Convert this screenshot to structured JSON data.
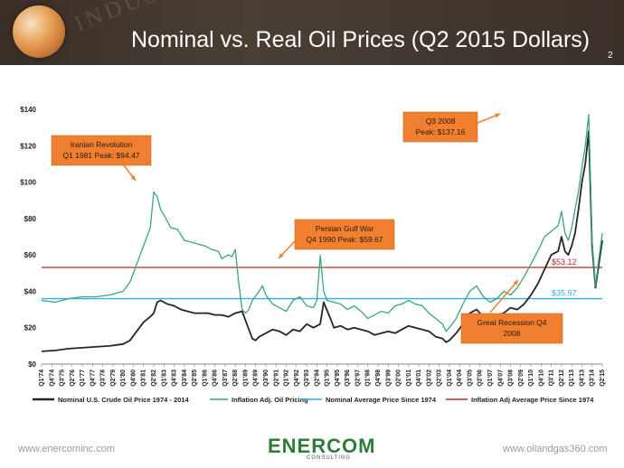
{
  "header": {
    "title": "Nominal vs. Real Oil Prices (Q2 2015 Dollars)",
    "page_number": "2",
    "watermark_text": "INDUSTRY"
  },
  "footer": {
    "left_url": "www.enercominc.com",
    "right_url": "www.oilandgas360.com",
    "logo_text": "ENERCOM",
    "logo_registered": "®",
    "logo_subtext": "CONSULTING"
  },
  "colors": {
    "header_bg": "#3e342c",
    "nominal": "#262626",
    "inflation_adj": "#3aa57f",
    "nominal_avg": "#2ab2e0",
    "inflation_avg": "#c0262b",
    "callout_bg": "#f07f2f",
    "callout_arrow": "#f07f2f"
  },
  "chart_data": {
    "type": "line",
    "ylim": [
      0,
      140
    ],
    "yticks": [
      "$0",
      "$20",
      "$40",
      "$60",
      "$80",
      "$100",
      "$120",
      "$140"
    ],
    "ytick_values": [
      0,
      20,
      40,
      60,
      80,
      100,
      120,
      140
    ],
    "x_start_index": 0,
    "x_count": 166,
    "x_tick_labels": [
      "Q1'74",
      "Q4'74",
      "Q3'75",
      "Q2'76",
      "Q1'77",
      "Q4'77",
      "Q3'78",
      "Q2'79",
      "Q1'80",
      "Q4'80",
      "Q3'81",
      "Q2'82",
      "Q1'83",
      "Q4'83",
      "Q3'84",
      "Q2'85",
      "Q1'86",
      "Q4'86",
      "Q3'87",
      "Q2'88",
      "Q1'89",
      "Q4'89",
      "Q3'90",
      "Q2'91",
      "Q1'92",
      "Q4'92",
      "Q3'93",
      "Q2'94",
      "Q1'95",
      "Q4'95",
      "Q3'96",
      "Q2'97",
      "Q1'98",
      "Q4'98",
      "Q3'99",
      "Q2'00",
      "Q1'01",
      "Q4'01",
      "Q3'02",
      "Q2'03",
      "Q1'04",
      "Q4'04",
      "Q3'05",
      "Q2'06",
      "Q1'07",
      "Q4'07",
      "Q3'08",
      "Q2'09",
      "Q1'10",
      "Q4'10",
      "Q3'11",
      "Q2'12",
      "Q1'13",
      "Q4'13",
      "Q3'14",
      "Q2'15"
    ],
    "series": [
      {
        "name": "Nominal U.S. Crude Oil Price 1974 - 2014",
        "key": "nominal",
        "points": [
          [
            0,
            7
          ],
          [
            4,
            7.5
          ],
          [
            8,
            8.5
          ],
          [
            12,
            9
          ],
          [
            16,
            9.5
          ],
          [
            20,
            10
          ],
          [
            24,
            11
          ],
          [
            26,
            13
          ],
          [
            28,
            18
          ],
          [
            30,
            23
          ],
          [
            32,
            26
          ],
          [
            33,
            28
          ],
          [
            34,
            34
          ],
          [
            35,
            35
          ],
          [
            37,
            33
          ],
          [
            39,
            32
          ],
          [
            41,
            30
          ],
          [
            43,
            29
          ],
          [
            45,
            28
          ],
          [
            47,
            28
          ],
          [
            49,
            28
          ],
          [
            51,
            27
          ],
          [
            53,
            27
          ],
          [
            55,
            26
          ],
          [
            57,
            28
          ],
          [
            59,
            29
          ],
          [
            60,
            24
          ],
          [
            62,
            14
          ],
          [
            63,
            13
          ],
          [
            64,
            15
          ],
          [
            66,
            17
          ],
          [
            68,
            19
          ],
          [
            70,
            18
          ],
          [
            72,
            16
          ],
          [
            74,
            19
          ],
          [
            76,
            18
          ],
          [
            78,
            22
          ],
          [
            80,
            20
          ],
          [
            82,
            22
          ],
          [
            83,
            34
          ],
          [
            85,
            25
          ],
          [
            86,
            20
          ],
          [
            88,
            21
          ],
          [
            90,
            19
          ],
          [
            92,
            20
          ],
          [
            94,
            19
          ],
          [
            96,
            18
          ],
          [
            98,
            16
          ],
          [
            100,
            17
          ],
          [
            102,
            18
          ],
          [
            104,
            17
          ],
          [
            106,
            19
          ],
          [
            108,
            21
          ],
          [
            110,
            20
          ],
          [
            112,
            19
          ],
          [
            114,
            18
          ],
          [
            116,
            15
          ],
          [
            118,
            14
          ],
          [
            119,
            12
          ],
          [
            120,
            13
          ],
          [
            122,
            17
          ],
          [
            124,
            22
          ],
          [
            126,
            28
          ],
          [
            128,
            30
          ],
          [
            130,
            26
          ],
          [
            132,
            25
          ],
          [
            134,
            27
          ],
          [
            136,
            28
          ],
          [
            138,
            31
          ],
          [
            140,
            30
          ],
          [
            142,
            33
          ],
          [
            144,
            38
          ],
          [
            146,
            44
          ],
          [
            148,
            52
          ],
          [
            150,
            60
          ],
          [
            152,
            62
          ],
          [
            153,
            70
          ],
          [
            154,
            62
          ],
          [
            155,
            60
          ],
          [
            156,
            65
          ],
          [
            157,
            72
          ],
          [
            158,
            85
          ],
          [
            159,
            100
          ],
          [
            160,
            110
          ],
          [
            161,
            128
          ],
          [
            162,
            65
          ],
          [
            163,
            42
          ],
          [
            164,
            55
          ],
          [
            165,
            68
          ]
        ]
      },
      {
        "name": "Inflation Adj. Oil Pricing",
        "key": "inflation",
        "points": [
          [
            0,
            35
          ],
          [
            4,
            34
          ],
          [
            8,
            36
          ],
          [
            12,
            37
          ],
          [
            16,
            37
          ],
          [
            20,
            38
          ],
          [
            24,
            40
          ],
          [
            26,
            45
          ],
          [
            28,
            55
          ],
          [
            30,
            65
          ],
          [
            31,
            70
          ],
          [
            32,
            75
          ],
          [
            33,
            94.5
          ],
          [
            34,
            92
          ],
          [
            35,
            85
          ],
          [
            36,
            82
          ],
          [
            38,
            75
          ],
          [
            40,
            74
          ],
          [
            42,
            68
          ],
          [
            44,
            67
          ],
          [
            46,
            66
          ],
          [
            48,
            65
          ],
          [
            50,
            63
          ],
          [
            52,
            62
          ],
          [
            53,
            58
          ],
          [
            55,
            60
          ],
          [
            56,
            59
          ],
          [
            57,
            63
          ],
          [
            58,
            45
          ],
          [
            59,
            30
          ],
          [
            60,
            28
          ],
          [
            61,
            30
          ],
          [
            62,
            35
          ],
          [
            64,
            40
          ],
          [
            65,
            43
          ],
          [
            66,
            38
          ],
          [
            68,
            33
          ],
          [
            70,
            31
          ],
          [
            72,
            29
          ],
          [
            74,
            35
          ],
          [
            76,
            37
          ],
          [
            78,
            32
          ],
          [
            80,
            31
          ],
          [
            81,
            35
          ],
          [
            82,
            59.7
          ],
          [
            83,
            40
          ],
          [
            84,
            35
          ],
          [
            86,
            34
          ],
          [
            88,
            33
          ],
          [
            90,
            30
          ],
          [
            92,
            32
          ],
          [
            94,
            29
          ],
          [
            96,
            25
          ],
          [
            98,
            27
          ],
          [
            100,
            29
          ],
          [
            102,
            28
          ],
          [
            104,
            32
          ],
          [
            106,
            33
          ],
          [
            108,
            35
          ],
          [
            110,
            33
          ],
          [
            112,
            32
          ],
          [
            114,
            28
          ],
          [
            116,
            25
          ],
          [
            118,
            22
          ],
          [
            119,
            18
          ],
          [
            120,
            20
          ],
          [
            122,
            25
          ],
          [
            124,
            33
          ],
          [
            126,
            40
          ],
          [
            128,
            43
          ],
          [
            130,
            37
          ],
          [
            132,
            34
          ],
          [
            134,
            36
          ],
          [
            136,
            40
          ],
          [
            138,
            38
          ],
          [
            140,
            42
          ],
          [
            142,
            48
          ],
          [
            144,
            55
          ],
          [
            146,
            62
          ],
          [
            148,
            70
          ],
          [
            150,
            73
          ],
          [
            152,
            76
          ],
          [
            153,
            84
          ],
          [
            154,
            72
          ],
          [
            155,
            68
          ],
          [
            156,
            75
          ],
          [
            157,
            85
          ],
          [
            158,
            95
          ],
          [
            159,
            108
          ],
          [
            160,
            120
          ],
          [
            161,
            137.2
          ],
          [
            162,
            68
          ],
          [
            163,
            43
          ],
          [
            164,
            58
          ],
          [
            165,
            72
          ]
        ]
      }
    ],
    "reference_lines": [
      {
        "name": "Nominal Average Price Since 1974",
        "value": 35.97,
        "label": "$35.97",
        "key": "nominal_avg"
      },
      {
        "name": "Inflation Adj Average Price Since 1974",
        "value": 53.12,
        "label": "$53.12",
        "key": "inflation_avg"
      }
    ],
    "legend_position": "bottom",
    "grid": false,
    "annotations": [
      {
        "key": "iranian",
        "lines": [
          "Iranian Revolution",
          "Q1 1981 Peak: $94.47"
        ]
      },
      {
        "key": "gulf",
        "lines": [
          "Persian Gulf War",
          "Q4 1990 Peak: $59.67"
        ]
      },
      {
        "key": "q3_2008",
        "lines": [
          "Q3 2008",
          "Peak: $137.16"
        ]
      },
      {
        "key": "recession",
        "lines": [
          "Great Recession Q4",
          "2008"
        ]
      }
    ]
  }
}
